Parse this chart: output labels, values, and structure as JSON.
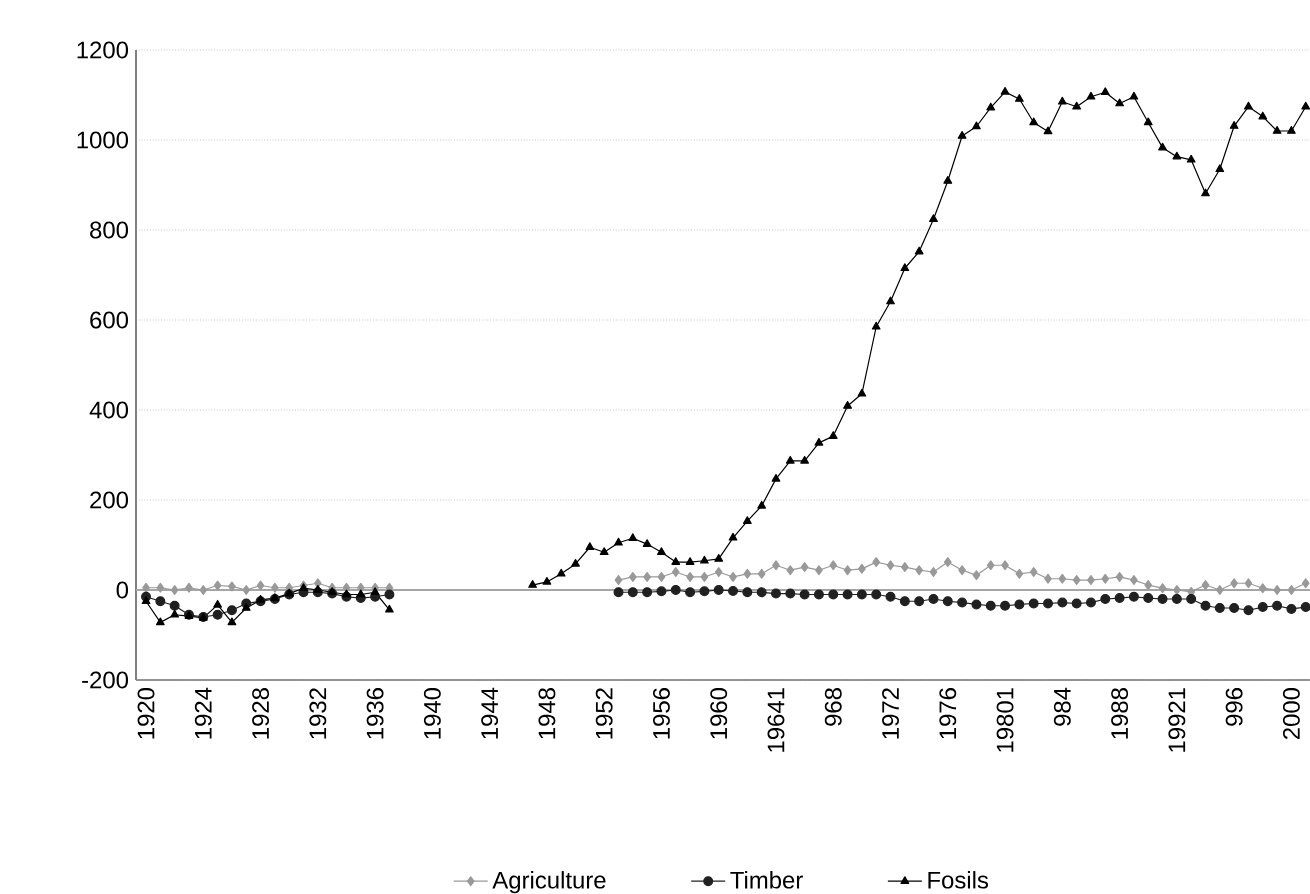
{
  "chart_data": {
    "type": "line",
    "categories": [
      "1920",
      null,
      null,
      null,
      "1924",
      null,
      null,
      null,
      "1928",
      null,
      null,
      null,
      "1932",
      null,
      null,
      null,
      "1936",
      null,
      null,
      null,
      "1940",
      null,
      null,
      null,
      "1944",
      null,
      null,
      null,
      "1948",
      null,
      null,
      null,
      "1952",
      null,
      null,
      null,
      "1956",
      null,
      null,
      null,
      "1960",
      null,
      null,
      null,
      "19641",
      null,
      null,
      null,
      "968",
      null,
      null,
      null,
      "1972",
      null,
      null,
      null,
      "1976",
      null,
      null,
      null,
      "19801",
      null,
      null,
      null,
      "984",
      null,
      null,
      null,
      "1988",
      null,
      null,
      null,
      "19921",
      null,
      null,
      null,
      "996",
      null,
      null,
      null,
      "2000",
      null
    ],
    "series": [
      {
        "name": "Agriculture",
        "color": "#999999",
        "marker": "diamond",
        "values": [
          5,
          5,
          0,
          5,
          0,
          10,
          8,
          0,
          10,
          5,
          5,
          10,
          15,
          5,
          5,
          5,
          5,
          5,
          null,
          null,
          null,
          null,
          null,
          null,
          null,
          null,
          null,
          null,
          null,
          null,
          null,
          null,
          null,
          22,
          29,
          29,
          29,
          40,
          29,
          29,
          40,
          29,
          36,
          36,
          55,
          44,
          51,
          44,
          55,
          44,
          47,
          62,
          55,
          51,
          44,
          40,
          62,
          44,
          33,
          55,
          55,
          36,
          40,
          25,
          25,
          22,
          22,
          25,
          29,
          22,
          11,
          4,
          0,
          -4,
          11,
          0,
          15,
          15,
          4,
          0,
          0,
          15
        ]
      },
      {
        "name": "Timber",
        "color": "#202020",
        "marker": "circle",
        "values": [
          -15,
          -25,
          -35,
          -55,
          -60,
          -55,
          -45,
          -30,
          -25,
          -20,
          -10,
          -5,
          -5,
          -8,
          -15,
          -18,
          -15,
          -10,
          null,
          null,
          null,
          null,
          null,
          null,
          null,
          null,
          null,
          null,
          null,
          null,
          null,
          null,
          null,
          -5,
          -5,
          -5,
          -3,
          0,
          -5,
          -3,
          0,
          -2,
          -5,
          -5,
          -8,
          -8,
          -10,
          -10,
          -10,
          -10,
          -10,
          -10,
          -15,
          -25,
          -25,
          -20,
          -25,
          -28,
          -32,
          -35,
          -35,
          -32,
          -30,
          -30,
          -28,
          -30,
          -28,
          -20,
          -18,
          -15,
          -18,
          -20,
          -20,
          -20,
          -35,
          -40,
          -40,
          -45,
          -38,
          -35,
          -42,
          -38
        ]
      },
      {
        "name": "Fosils",
        "color": "#000000",
        "marker": "triangle",
        "values": [
          -25,
          -72,
          -55,
          -58,
          -62,
          -33,
          -72,
          -40,
          -22,
          -18,
          -8,
          4,
          0,
          -5,
          -10,
          -10,
          -5,
          -44,
          null,
          null,
          null,
          null,
          null,
          null,
          null,
          null,
          null,
          11,
          18,
          36,
          58,
          95,
          84,
          105,
          115,
          102,
          84,
          62,
          62,
          65,
          69,
          116,
          153,
          187,
          247,
          287,
          287,
          327,
          342,
          409,
          436,
          585,
          641,
          715,
          752,
          824,
          909,
          1009,
          1030,
          1072,
          1107,
          1091,
          1039,
          1019,
          1085,
          1074,
          1096,
          1106,
          1081,
          1096,
          1039,
          983,
          963,
          956,
          881,
          935,
          1031,
          1074,
          1052,
          1020,
          1020,
          1074
        ]
      }
    ],
    "ylim": [
      -200,
      1200
    ],
    "yticks": [
      -200,
      0,
      200,
      400,
      600,
      800,
      1000,
      1200
    ],
    "grid": "y",
    "legend": "bottom"
  }
}
